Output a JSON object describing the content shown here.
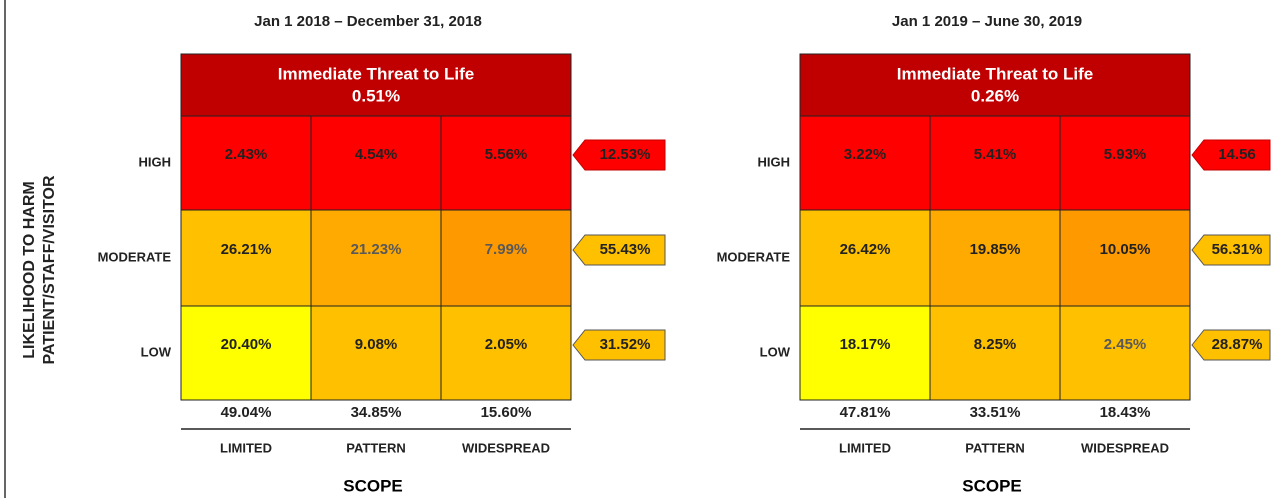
{
  "y_axis_label": [
    "LIKELIHOOD TO HARM",
    "PATIENT/STAFF/VISITOR"
  ],
  "x_axis_label": "SCOPE",
  "panels": [
    {
      "period": "Jan 1 2018 – December 31, 2018",
      "top": {
        "label": "Immediate Threat to Life",
        "value": "0.51%"
      },
      "rows": [
        {
          "label": "HIGH",
          "cells": [
            "2.43%",
            "4.54%",
            "5.56%"
          ],
          "total": "12.53%"
        },
        {
          "label": "MODERATE",
          "cells": [
            "26.21%",
            "21.23%",
            "7.99%"
          ],
          "total": "55.43%"
        },
        {
          "label": "LOW",
          "cells": [
            "20.40%",
            "9.08%",
            "2.05%"
          ],
          "total": "31.52%"
        }
      ],
      "column_totals": [
        "49.04%",
        "34.85%",
        "15.60%"
      ],
      "columns": [
        "LIMITED",
        "PATTERN",
        "WIDESPREAD"
      ]
    },
    {
      "period": "Jan 1 2019 – June 30, 2019",
      "top": {
        "label": "Immediate Threat to Life",
        "value": "0.26%"
      },
      "rows": [
        {
          "label": "HIGH",
          "cells": [
            "3.22%",
            "5.41%",
            "5.93%"
          ],
          "total": "14.56"
        },
        {
          "label": "MODERATE",
          "cells": [
            "26.42%",
            "19.85%",
            "10.05%"
          ],
          "total": "56.31%"
        },
        {
          "label": "LOW",
          "cells": [
            "18.17%",
            "8.25%",
            "2.45%"
          ],
          "total": "28.87%"
        }
      ],
      "column_totals": [
        "47.81%",
        "33.51%",
        "18.43%"
      ],
      "columns": [
        "LIMITED",
        "PATTERN",
        "WIDESPREAD"
      ]
    }
  ]
}
